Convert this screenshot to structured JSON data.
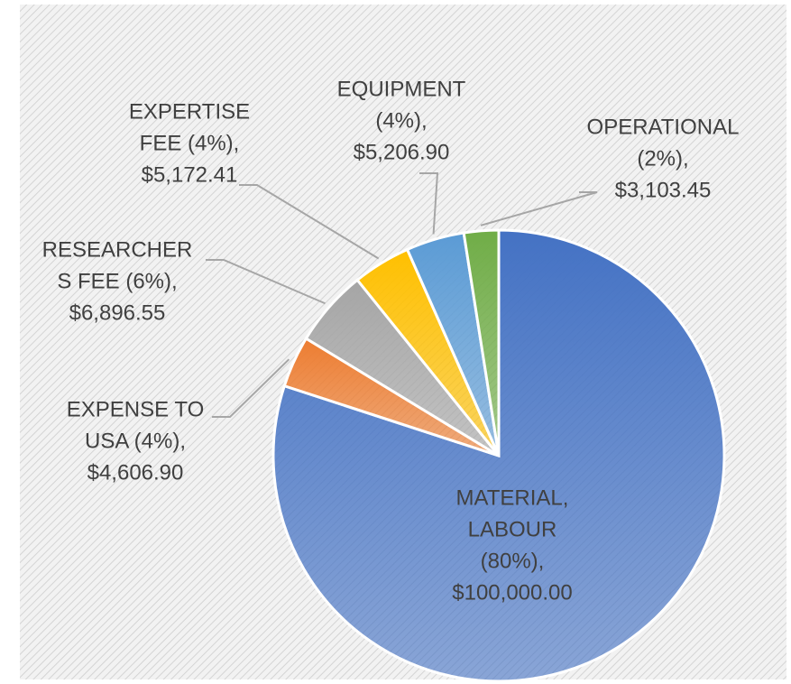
{
  "chart_data": {
    "type": "pie",
    "categories": [
      [
        "MATERIAL,",
        "LABOUR",
        "(80%),"
      ],
      [
        "EXPENSE TO",
        "USA (4%),"
      ],
      [
        "RESEARCHER",
        "S FEE (6%),"
      ],
      [
        "EXPERTISE",
        "FEE (4%),"
      ],
      [
        "EQUIPMENT",
        "(4%),"
      ],
      [
        "OPERATIONAL",
        "(2%),"
      ]
    ],
    "values": [
      100000.0,
      4606.9,
      6896.55,
      5172.41,
      5206.9,
      3103.45
    ],
    "value_labels": [
      "$100,000.00",
      "$4,606.90",
      "$6,896.55",
      "$5,172.41",
      "$5,206.90",
      "$3,103.45"
    ],
    "colors": [
      "#4472c4",
      "#ed7d31",
      "#a5a5a5",
      "#ffc000",
      "#5b9bd5",
      "#70ad47"
    ]
  }
}
